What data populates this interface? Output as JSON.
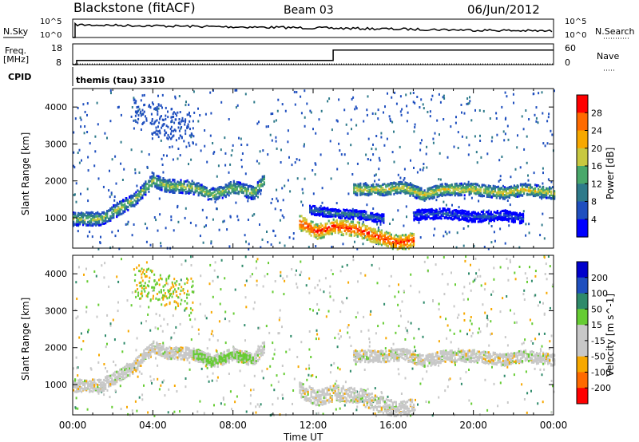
{
  "header": {
    "station": "Blackstone (fitACF)",
    "beam": "Beam 03",
    "date": "06/Jun/2012"
  },
  "noise_panel": {
    "left_label": "N.Sky",
    "left_ticks": [
      "10^5",
      "10^0"
    ],
    "right_label": "N.Search",
    "right_ticks": [
      "10^5",
      "10^0"
    ]
  },
  "freq_panel": {
    "left_label_line1": "Freq.",
    "left_label_line2": "[MHz]",
    "left_ticks": [
      "18",
      "8"
    ],
    "right_label": "Nave",
    "right_ticks": [
      "60",
      "0"
    ],
    "freq_series": {
      "x_hours": [
        0.0,
        0.2,
        0.2,
        13.0,
        13.0,
        24.0
      ],
      "y": [
        8,
        8,
        10,
        10,
        15,
        15
      ]
    },
    "nave_series": {
      "x_hours": [
        0.0,
        24.0
      ],
      "y": [
        2,
        2
      ]
    }
  },
  "cpid": {
    "label": "CPID",
    "value": "themis (tau) 3310"
  },
  "xaxis": {
    "label": "Time UT",
    "ticks": [
      "00:00",
      "04:00",
      "08:00",
      "12:00",
      "16:00",
      "20:00",
      "00:00"
    ]
  },
  "chart_data": [
    {
      "type": "heatmap",
      "name": "power",
      "ylabel": "Slant Range [km]",
      "yticks": [
        "1000",
        "2000",
        "3000",
        "4000"
      ],
      "ylim": [
        180,
        4500
      ],
      "xlim": [
        0,
        24
      ],
      "colorbar_label": "Power [dB]",
      "colorbar_ticks": [
        "28",
        "24",
        "20",
        "16",
        "12",
        "8",
        "4"
      ],
      "colorbar_colors": [
        "#0000ff",
        "#1f4fbf",
        "#2e7a8a",
        "#49a86a",
        "#c8c840",
        "#f7a800",
        "#ff6a00",
        "#ff0000"
      ],
      "bands": [
        {
          "x": [
            0.0,
            1.4,
            3.0,
            4.0,
            4.6,
            6.0,
            7.0,
            8.0,
            9.0,
            9.6
          ],
          "y": [
            1000,
            1000,
            1500,
            2050,
            1900,
            1850,
            1650,
            1850,
            1700,
            2100
          ],
          "level": 0.55,
          "thick": 180
        },
        {
          "x": [
            11.3,
            12.2,
            13.0,
            14.3,
            15.3,
            16.2,
            17.0
          ],
          "y": [
            900,
            650,
            800,
            700,
            500,
            350,
            420
          ],
          "level": 0.92,
          "thick": 200
        },
        {
          "x": [
            14.0,
            15.5,
            16.5,
            17.5,
            18.5,
            20.0,
            21.5,
            22.5,
            24.0
          ],
          "y": [
            1800,
            1800,
            1850,
            1650,
            1800,
            1800,
            1700,
            1800,
            1700
          ],
          "level": 0.62,
          "thick": 160
        },
        {
          "x": [
            11.8,
            13.0,
            14.5,
            15.5
          ],
          "y": [
            1250,
            1150,
            1100,
            1000
          ],
          "level": 0.35,
          "thick": 120
        },
        {
          "x": [
            17.0,
            18.5,
            20.0,
            21.5,
            22.5
          ],
          "y": [
            1100,
            1150,
            1050,
            1100,
            1000
          ],
          "level": 0.25,
          "thick": 140
        }
      ]
    },
    {
      "type": "heatmap",
      "name": "velocity",
      "ylabel": "Slant Range [km]",
      "yticks": [
        "1000",
        "2000",
        "3000",
        "4000"
      ],
      "ylim": [
        180,
        4500
      ],
      "xlim": [
        0,
        24
      ],
      "colorbar_label": "Velocity [m s^-1]",
      "colorbar_ticks": [
        "200",
        "100",
        "50",
        "15",
        "-15",
        "-50",
        "-100",
        "-200"
      ],
      "colorbar_colors": [
        "#ff0000",
        "#ff6a00",
        "#f7a800",
        "#c8c8c8",
        "#c8c8c8",
        "#66cc33",
        "#2e8a6a",
        "#1f4fbf",
        "#0000cc"
      ],
      "bands": [
        {
          "x": [
            0.0,
            1.4,
            3.0,
            4.0,
            4.6,
            6.0,
            7.0,
            8.0,
            9.0,
            9.6
          ],
          "y": [
            1000,
            1000,
            1500,
            2050,
            1900,
            1850,
            1650,
            1850,
            1700,
            2100
          ],
          "tone": "grey",
          "thick": 170
        },
        {
          "x": [
            11.3,
            12.2,
            13.0,
            14.3,
            15.3,
            16.2,
            17.0
          ],
          "y": [
            900,
            650,
            800,
            700,
            500,
            350,
            420
          ],
          "tone": "grey",
          "thick": 220
        },
        {
          "x": [
            14.0,
            15.5,
            16.5,
            17.5,
            18.5,
            20.0,
            21.5,
            22.5,
            24.0
          ],
          "y": [
            1800,
            1800,
            1850,
            1650,
            1800,
            1800,
            1700,
            1800,
            1700
          ],
          "tone": "grey",
          "thick": 160
        },
        {
          "x": [
            6.0,
            7.0,
            8.0,
            9.0
          ],
          "y": [
            1850,
            1650,
            1850,
            1700
          ],
          "tone": "green",
          "thick": 90
        }
      ]
    }
  ]
}
